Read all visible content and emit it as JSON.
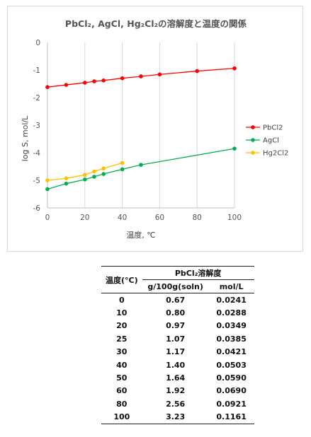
{
  "chart_data": {
    "type": "line",
    "title": "PbCl₂, AgCl, Hg₂Cl₂の溶解度と温度の関係",
    "xlabel": "温度, ℃",
    "ylabel": "log S, mol/L",
    "xlim": [
      0,
      100
    ],
    "ylim": [
      -6,
      0
    ],
    "xticks": [
      0,
      20,
      40,
      60,
      80,
      100
    ],
    "yticks": [
      0,
      -1,
      -2,
      -3,
      -4,
      -5,
      -6
    ],
    "grid": "vertical",
    "legend_position": "right",
    "series": [
      {
        "name": "PbCl2",
        "color": "#ff0000",
        "x": [
          0,
          10,
          20,
          25,
          30,
          40,
          50,
          60,
          80,
          100
        ],
        "y": [
          -1.62,
          -1.54,
          -1.46,
          -1.41,
          -1.38,
          -1.3,
          -1.23,
          -1.16,
          -1.04,
          -0.94
        ]
      },
      {
        "name": "AgCl",
        "color": "#00b050",
        "x": [
          0,
          10,
          20,
          25,
          30,
          40,
          50,
          100
        ],
        "y": [
          -5.32,
          -5.12,
          -4.97,
          -4.87,
          -4.77,
          -4.6,
          -4.44,
          -3.85
        ]
      },
      {
        "name": "Hg2Cl2",
        "color": "#ffc000",
        "x": [
          0,
          10,
          20,
          25,
          30,
          40
        ],
        "y": [
          -5.0,
          -4.93,
          -4.8,
          -4.68,
          -4.57,
          -4.37
        ]
      }
    ]
  },
  "table": {
    "col1_header": "温度(°C)",
    "group_header": "PbCl₂溶解度",
    "col2_header": "g/100g(soln)",
    "col3_header": "mol/L",
    "rows": [
      [
        "0",
        "0.67",
        "0.0241"
      ],
      [
        "10",
        "0.80",
        "0.0288"
      ],
      [
        "20",
        "0.97",
        "0.0349"
      ],
      [
        "25",
        "1.07",
        "0.0385"
      ],
      [
        "30",
        "1.17",
        "0.0421"
      ],
      [
        "40",
        "1.40",
        "0.0503"
      ],
      [
        "50",
        "1.64",
        "0.0590"
      ],
      [
        "60",
        "1.92",
        "0.0690"
      ],
      [
        "80",
        "2.56",
        "0.0921"
      ],
      [
        "100",
        "3.23",
        "0.1161"
      ]
    ]
  }
}
